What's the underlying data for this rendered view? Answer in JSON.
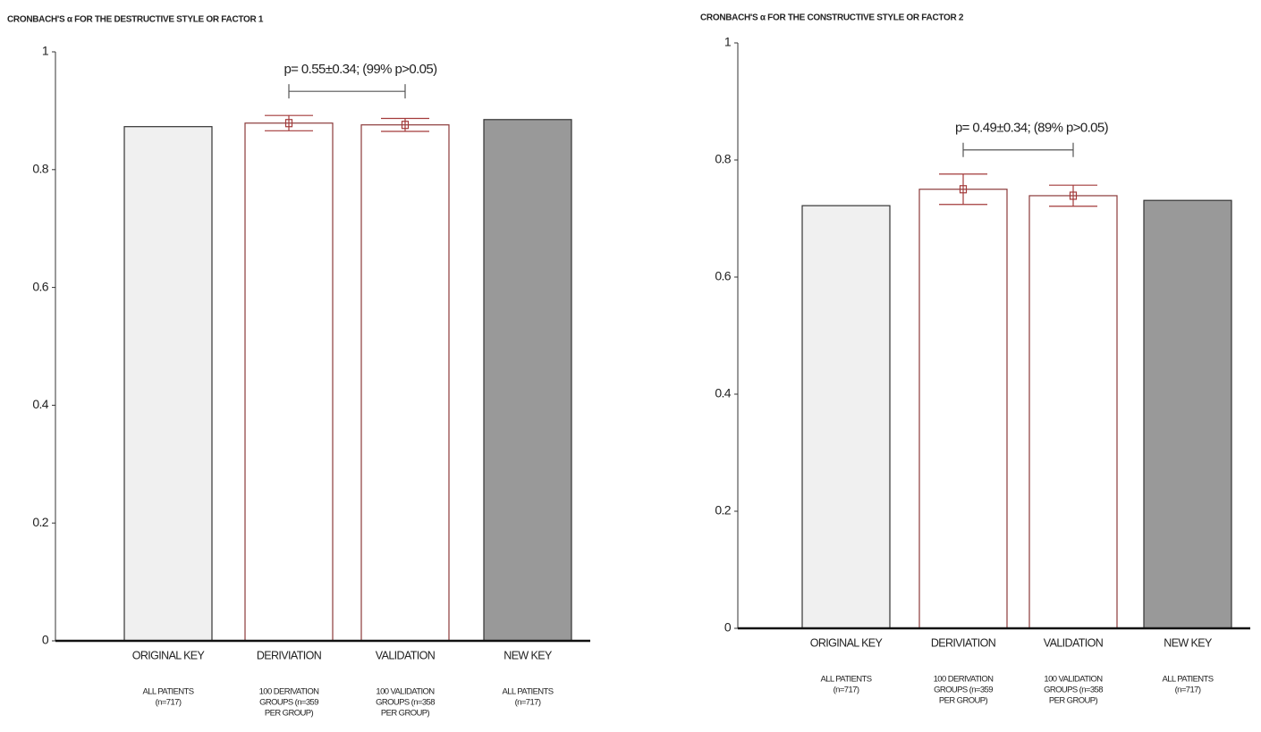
{
  "chart_data": [
    {
      "type": "bar",
      "title": "CRONBACH'S α FOR THE DESTRUCTIVE STYLE OR FACTOR 1",
      "categories": [
        "ORIGINAL KEY",
        "DERIVIATION",
        "VALIDATION",
        "NEW KEY"
      ],
      "sublabels": [
        [
          "ALL PATIENTS",
          "(n=717)"
        ],
        [
          "100 DERIVATION",
          "GROUPS (n=359",
          "PER GROUP)"
        ],
        [
          "100 VALIDATION",
          "GROUPS (n=358",
          "PER GROUP)"
        ],
        [
          "ALL PATIENTS",
          "(n=717)"
        ]
      ],
      "values": [
        0.873,
        0.879,
        0.876,
        0.885
      ],
      "errors": [
        null,
        0.013,
        0.011,
        null
      ],
      "colors": [
        "#f0f0f0",
        "#ffffff",
        "#ffffff",
        "#999999"
      ],
      "edge_colors": [
        "#333333",
        "#8b3a3a",
        "#8b3a3a",
        "#333333"
      ],
      "error_color": "#a33a3a",
      "annotation": "p= 0.55±0.34; (99% p>0.05)",
      "ylim": [
        0,
        1
      ],
      "yticks": [
        0,
        0.2,
        0.4,
        0.6,
        0.8,
        1
      ]
    },
    {
      "type": "bar",
      "title": "CRONBACH'S α FOR THE CONSTRUCTIVE STYLE OR FACTOR 2",
      "categories": [
        "ORIGINAL KEY",
        "DERIVIATION",
        "VALIDATION",
        "NEW KEY"
      ],
      "sublabels": [
        [
          "ALL PATIENTS",
          "(n=717)"
        ],
        [
          "100 DERIVATION",
          "GROUPS (n=359",
          "PER GROUP)"
        ],
        [
          "100 VALIDATION",
          "GROUPS (n=358",
          "PER GROUP)"
        ],
        [
          "ALL PATIENTS",
          "(n=717)"
        ]
      ],
      "values": [
        0.722,
        0.75,
        0.739,
        0.731
      ],
      "errors": [
        null,
        0.026,
        0.018,
        null
      ],
      "colors": [
        "#f0f0f0",
        "#ffffff",
        "#ffffff",
        "#999999"
      ],
      "edge_colors": [
        "#333333",
        "#8b3a3a",
        "#8b3a3a",
        "#333333"
      ],
      "error_color": "#a33a3a",
      "annotation": "p= 0.49±0.34; (89% p>0.05)",
      "ylim": [
        0,
        1
      ],
      "yticks": [
        0,
        0.2,
        0.4,
        0.6,
        0.8,
        1
      ]
    }
  ]
}
